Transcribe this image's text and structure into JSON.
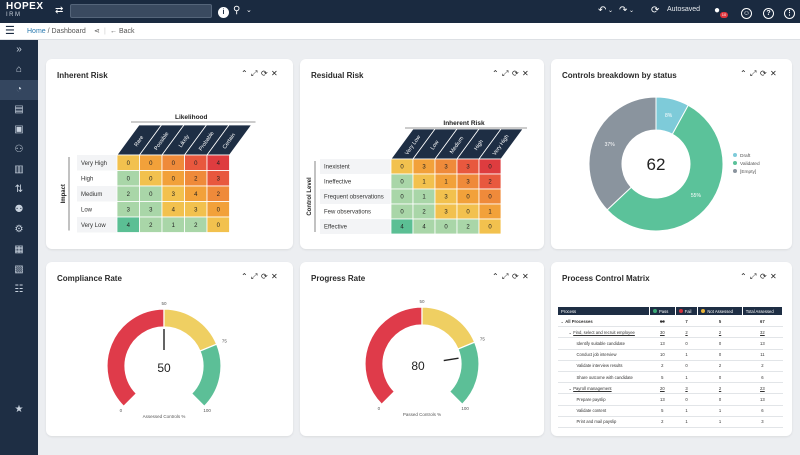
{
  "topbar": {
    "logo_line1": "HOPEX",
    "logo_line2": "IRM",
    "autosaved": "Autosaved",
    "notification_count": "10"
  },
  "breadcrumb": {
    "home": "Home",
    "sep": "/",
    "dashboard": "Dashboard",
    "back": "Back"
  },
  "sidebar": {
    "icons": [
      "expand-icon",
      "home-icon",
      "dashboard-icon",
      "risk-icon",
      "controls-icon",
      "audit-icon",
      "document-icon",
      "process-icon",
      "organization-icon",
      "settings-icon",
      "report-icon",
      "chart-icon",
      "checklist-icon",
      "favorites-icon"
    ]
  },
  "panels": {
    "inherent_risk": {
      "title": "Inherent Risk",
      "top_axis": "Likelihood",
      "side_axis": "Impact",
      "columns": [
        "Rare",
        "Possible",
        "Likely",
        "Probable",
        "Certain"
      ],
      "rows": [
        "Very High",
        "High",
        "Medium",
        "Low",
        "Very Low"
      ],
      "values": [
        [
          "0",
          "0",
          "0",
          "0",
          "4"
        ],
        [
          "0",
          "0",
          "0",
          "2",
          "3"
        ],
        [
          "2",
          "0",
          "3",
          "4",
          "2"
        ],
        [
          "3",
          "3",
          "4",
          "3",
          "0"
        ],
        [
          "4",
          "2",
          "1",
          "2",
          "0"
        ]
      ],
      "colors": [
        [
          "#f2c14e",
          "#f2a13a",
          "#ef8a3a",
          "#e8583e",
          "#de3c3f"
        ],
        [
          "#a9d6a8",
          "#f2c14e",
          "#f2a13a",
          "#ef8a3a",
          "#e8583e"
        ],
        [
          "#a9d6a8",
          "#a9d6a8",
          "#f2c14e",
          "#f2a13a",
          "#ef8a3a"
        ],
        [
          "#a9d6a8",
          "#a9d6a8",
          "#f2c14e",
          "#f2c14e",
          "#f2a13a"
        ],
        [
          "#5bbf94",
          "#a9d6a8",
          "#a9d6a8",
          "#a9d6a8",
          "#f2c14e"
        ]
      ]
    },
    "residual_risk": {
      "title": "Residual Risk",
      "top_axis": "Inherent Risk",
      "side_axis": "Control Level",
      "columns": [
        "Very Low",
        "Low",
        "Medium",
        "High",
        "Very High"
      ],
      "rows": [
        "Inexistent",
        "Ineffective",
        "Frequent observations",
        "Few observations",
        "Effective"
      ],
      "values": [
        [
          "0",
          "3",
          "3",
          "3",
          "0"
        ],
        [
          "0",
          "1",
          "1",
          "3",
          "2"
        ],
        [
          "0",
          "1",
          "3",
          "0",
          "0"
        ],
        [
          "0",
          "2",
          "3",
          "0",
          "1"
        ],
        [
          "4",
          "4",
          "0",
          "2",
          "0"
        ]
      ],
      "colors": [
        [
          "#f2c14e",
          "#f2a13a",
          "#ef8a3a",
          "#e8583e",
          "#de3c3f"
        ],
        [
          "#a9d6a8",
          "#f2c14e",
          "#f2a13a",
          "#ef8a3a",
          "#e8583e"
        ],
        [
          "#a9d6a8",
          "#a9d6a8",
          "#f2c14e",
          "#f2a13a",
          "#ef8a3a"
        ],
        [
          "#a9d6a8",
          "#a9d6a8",
          "#f2c14e",
          "#f2c14e",
          "#f2a13a"
        ],
        [
          "#5bbf94",
          "#a9d6a8",
          "#a9d6a8",
          "#a9d6a8",
          "#f2c14e"
        ]
      ]
    },
    "controls_breakdown": {
      "title": "Controls breakdown by status",
      "center_value": "62"
    },
    "compliance_rate": {
      "title": "Compliance Rate",
      "value": "50",
      "min_label": "0",
      "mid_label": "50",
      "tick_75": "75",
      "max_label": "100",
      "caption": "Assessed Controls %"
    },
    "progress_rate": {
      "title": "Progress Rate",
      "value": "80",
      "min_label": "0",
      "mid_label": "50",
      "tick_75": "75",
      "max_label": "100",
      "caption": "Passed Controls %"
    },
    "process_control_matrix": {
      "title": "Process Control Matrix",
      "headers": [
        "Process",
        "Pass",
        "Fail",
        "Not Assessed",
        "Total Assessed"
      ],
      "header_dot_colors": [
        "#3aa874",
        "#d2313c",
        "#e8b43a"
      ],
      "rows": [
        {
          "name": "All Processes",
          "pass": "60",
          "fail": "7",
          "na": "5",
          "total": "67",
          "level": 0,
          "link": false,
          "bold": true,
          "strike": true
        },
        {
          "name": "Find, select and recruit employee",
          "pass": "30",
          "fail": "2",
          "na": "2",
          "total": "32",
          "level": 1,
          "link": true,
          "bold": false,
          "strike": false
        },
        {
          "name": "Identify suitable candidate",
          "pass": "13",
          "fail": "0",
          "na": "0",
          "total": "13",
          "level": 2,
          "link": false,
          "bold": false,
          "strike": false
        },
        {
          "name": "Conduct job interview",
          "pass": "10",
          "fail": "1",
          "na": "0",
          "total": "11",
          "level": 2,
          "link": false,
          "bold": false,
          "strike": false
        },
        {
          "name": "Validate interview results",
          "pass": "2",
          "fail": "0",
          "na": "2",
          "total": "2",
          "level": 2,
          "link": false,
          "bold": false,
          "strike": false
        },
        {
          "name": "Share outcome with candidate",
          "pass": "5",
          "fail": "1",
          "na": "0",
          "total": "6",
          "level": 2,
          "link": false,
          "bold": false,
          "strike": false
        },
        {
          "name": "Payroll management",
          "pass": "20",
          "fail": "3",
          "na": "2",
          "total": "23",
          "level": 1,
          "link": true,
          "bold": false,
          "strike": false
        },
        {
          "name": "Prepare payslip",
          "pass": "13",
          "fail": "0",
          "na": "0",
          "total": "13",
          "level": 2,
          "link": false,
          "bold": false,
          "strike": false
        },
        {
          "name": "Validate content",
          "pass": "5",
          "fail": "1",
          "na": "1",
          "total": "6",
          "level": 2,
          "link": false,
          "bold": false,
          "strike": false
        },
        {
          "name": "Print and mail payslip",
          "pass": "2",
          "fail": "1",
          "na": "1",
          "total": "3",
          "level": 2,
          "link": false,
          "bold": false,
          "strike": false
        }
      ]
    }
  },
  "chart_data": [
    {
      "type": "pie",
      "center_label": "62",
      "categories": [
        "Draft",
        "Validated",
        "[Empty]"
      ],
      "values": [
        8,
        55,
        37
      ],
      "data_labels": [
        "8%",
        "55%",
        "37%"
      ],
      "colors": [
        "#7ecbd9",
        "#5bc29a",
        "#8a949e"
      ],
      "legend": "right"
    },
    {
      "type": "gauge",
      "value": 50,
      "min": 0,
      "max": 100,
      "bands": [
        {
          "from": 0,
          "to": 50,
          "color": "#df3b4a"
        },
        {
          "from": 50,
          "to": 75,
          "color": "#efcf62"
        },
        {
          "from": 75,
          "to": 100,
          "color": "#5cbf97"
        }
      ]
    },
    {
      "type": "gauge",
      "value": 80,
      "min": 0,
      "max": 100,
      "bands": [
        {
          "from": 0,
          "to": 50,
          "color": "#df3b4a"
        },
        {
          "from": 50,
          "to": 75,
          "color": "#efcf62"
        },
        {
          "from": 75,
          "to": 100,
          "color": "#5cbf97"
        }
      ]
    }
  ]
}
